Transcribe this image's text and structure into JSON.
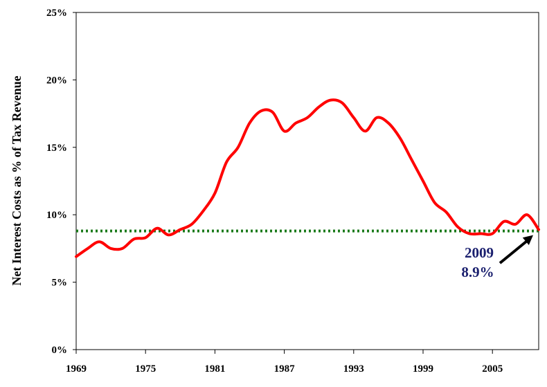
{
  "chart_data": {
    "type": "line",
    "title": "",
    "xlabel": "",
    "ylabel": "Net Interest Costs as % of Tax Revenue",
    "x_ticks": [
      "1969",
      "1975",
      "1981",
      "1987",
      "1993",
      "1999",
      "2005"
    ],
    "y_ticks": [
      "0%",
      "5%",
      "10%",
      "15%",
      "20%",
      "25%"
    ],
    "xlim": [
      1969,
      2009
    ],
    "ylim": [
      0,
      25
    ],
    "grid": false,
    "series": [
      {
        "color": "#ff0000",
        "x": [
          1969,
          1970,
          1971,
          1972,
          1973,
          1974,
          1975,
          1976,
          1977,
          1978,
          1979,
          1980,
          1981,
          1982,
          1983,
          1984,
          1985,
          1986,
          1987,
          1988,
          1989,
          1990,
          1991,
          1992,
          1993,
          1994,
          1995,
          1996,
          1997,
          1998,
          1999,
          2000,
          2001,
          2002,
          2003,
          2004,
          2005,
          2006,
          2007,
          2008,
          2009
        ],
        "values": [
          6.9,
          7.5,
          8.0,
          7.5,
          7.5,
          8.2,
          8.3,
          9.0,
          8.5,
          8.9,
          9.3,
          10.3,
          11.6,
          13.9,
          15.0,
          16.8,
          17.7,
          17.6,
          16.2,
          16.8,
          17.2,
          18.0,
          18.5,
          18.3,
          17.2,
          16.2,
          17.2,
          16.8,
          15.7,
          14.1,
          12.5,
          10.9,
          10.2,
          9.1,
          8.6,
          8.6,
          8.6,
          9.5,
          9.3,
          10.0,
          8.9
        ]
      }
    ],
    "reference_line": {
      "value": 8.8,
      "color": "#1a7a1a",
      "style": "dotted"
    },
    "annotation": {
      "year_label": "2009",
      "value_label": "8.9%",
      "arrow_to_x": 2009,
      "arrow_to_y": 8.9
    }
  }
}
